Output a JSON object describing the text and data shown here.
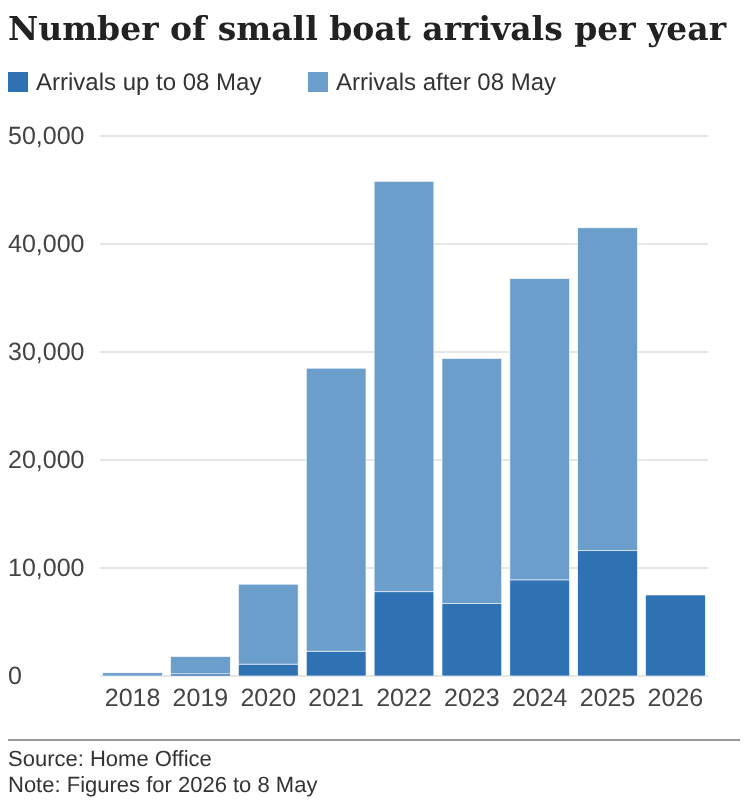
{
  "chart_data": {
    "type": "bar",
    "title": "Number of small boat arrivals per year",
    "stacked": true,
    "legend": "top left",
    "grid": "y",
    "categories": [
      "2018",
      "2019",
      "2020",
      "2021",
      "2022",
      "2023",
      "2024",
      "2025",
      "2026"
    ],
    "series": [
      {
        "name": "Arrivals up to 08 May",
        "color": "#2e72b3",
        "values": [
          null,
          200,
          1100,
          2300,
          7800,
          6700,
          8900,
          11600,
          7500
        ]
      },
      {
        "name": "Arrivals after 08 May",
        "color": "#6c9ecc",
        "values": [
          300,
          1600,
          7400,
          26200,
          38000,
          22700,
          27900,
          29900,
          null
        ]
      }
    ],
    "ylim": [
      0,
      50000
    ],
    "yticks": [
      {
        "value": 0,
        "label": "0"
      },
      {
        "value": 10000,
        "label": "10,000"
      },
      {
        "value": 20000,
        "label": "20,000"
      },
      {
        "value": 30000,
        "label": "30,000"
      },
      {
        "value": 40000,
        "label": "40,000"
      },
      {
        "value": 50000,
        "label": "50,000"
      }
    ],
    "annotations": [
      "Source: Home Office",
      "Note: Figures for 2026 to 8 May"
    ]
  }
}
